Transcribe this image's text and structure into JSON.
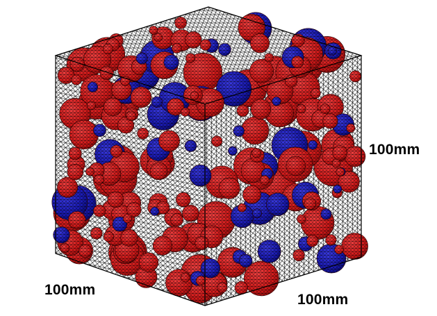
{
  "dimensions": {
    "depth_label": "100mm",
    "width_label": "100mm",
    "height_label": "100mm"
  },
  "colors": {
    "background": "#ffffff",
    "mesh_line": "#000000",
    "aggregate_primary": "#d41a1a",
    "aggregate_secondary": "#1a1ab4"
  },
  "legend": []
}
